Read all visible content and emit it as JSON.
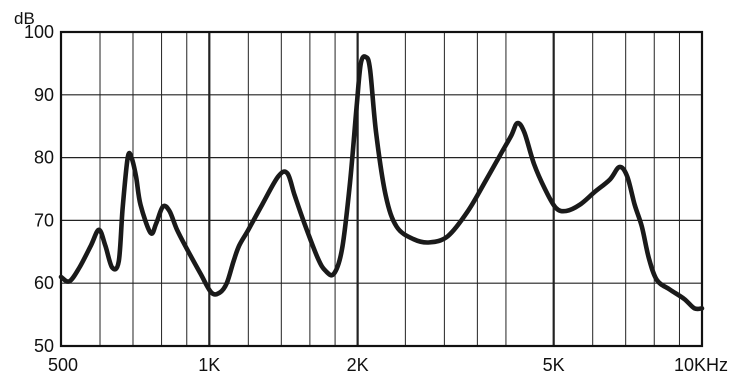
{
  "chart_data": {
    "type": "line",
    "title": "",
    "ylabel": "dB",
    "xlabel": "",
    "x_scale": "log",
    "xlim": [
      500,
      10000
    ],
    "ylim": [
      50,
      100
    ],
    "grid": true,
    "x_tick_values": [
      500,
      1000,
      2000,
      5000,
      10000
    ],
    "x_tick_labels": [
      "500",
      "1K",
      "2K",
      "5K",
      "10KHz"
    ],
    "y_ticks": [
      50,
      60,
      70,
      80,
      90,
      100
    ],
    "x_grid_values": [
      600,
      700,
      800,
      900,
      1000,
      1200,
      1400,
      1600,
      1800,
      2000,
      2500,
      3000,
      3500,
      4000,
      5000,
      6000,
      7000,
      8000,
      9000
    ],
    "x_major_grid_values": [
      1000,
      2000,
      5000
    ],
    "series": [
      {
        "name": "",
        "color": "#1a1a1a",
        "x": [
          500,
          520,
          545,
          575,
          597,
          615,
          635,
          655,
          667,
          683,
          695,
          710,
          725,
          760,
          780,
          805,
          830,
          860,
          900,
          960,
          1010,
          1050,
          1085,
          1120,
          1150,
          1200,
          1280,
          1380,
          1440,
          1490,
          1560,
          1660,
          1720,
          1790,
          1860,
          1930,
          1990,
          2030,
          2080,
          2120,
          2180,
          2280,
          2400,
          2600,
          2800,
          3050,
          3350,
          3650,
          3900,
          4100,
          4220,
          4360,
          4560,
          4800,
          5050,
          5300,
          5650,
          6050,
          6500,
          6800,
          7050,
          7300,
          7550,
          7800,
          8100,
          8600,
          9200,
          9650,
          10000
        ],
        "y": [
          61,
          60.3,
          62.5,
          66,
          68.5,
          66,
          62.5,
          63.5,
          72,
          80,
          80,
          77,
          72.5,
          68,
          69.5,
          72.2,
          71.5,
          68.5,
          65.5,
          61.5,
          58.5,
          58.5,
          60,
          63.5,
          66,
          68.5,
          72.5,
          77,
          77.5,
          74,
          69.5,
          64,
          62,
          61.5,
          65.5,
          76,
          88,
          95,
          96,
          94,
          84,
          74,
          69,
          67,
          66.5,
          67.5,
          71.5,
          76.5,
          80.5,
          83.5,
          85.5,
          84,
          79,
          75,
          72,
          71.5,
          72.5,
          74.5,
          76.5,
          78.5,
          77,
          72.5,
          69,
          64,
          60.5,
          59,
          57.5,
          56,
          56
        ]
      }
    ]
  }
}
